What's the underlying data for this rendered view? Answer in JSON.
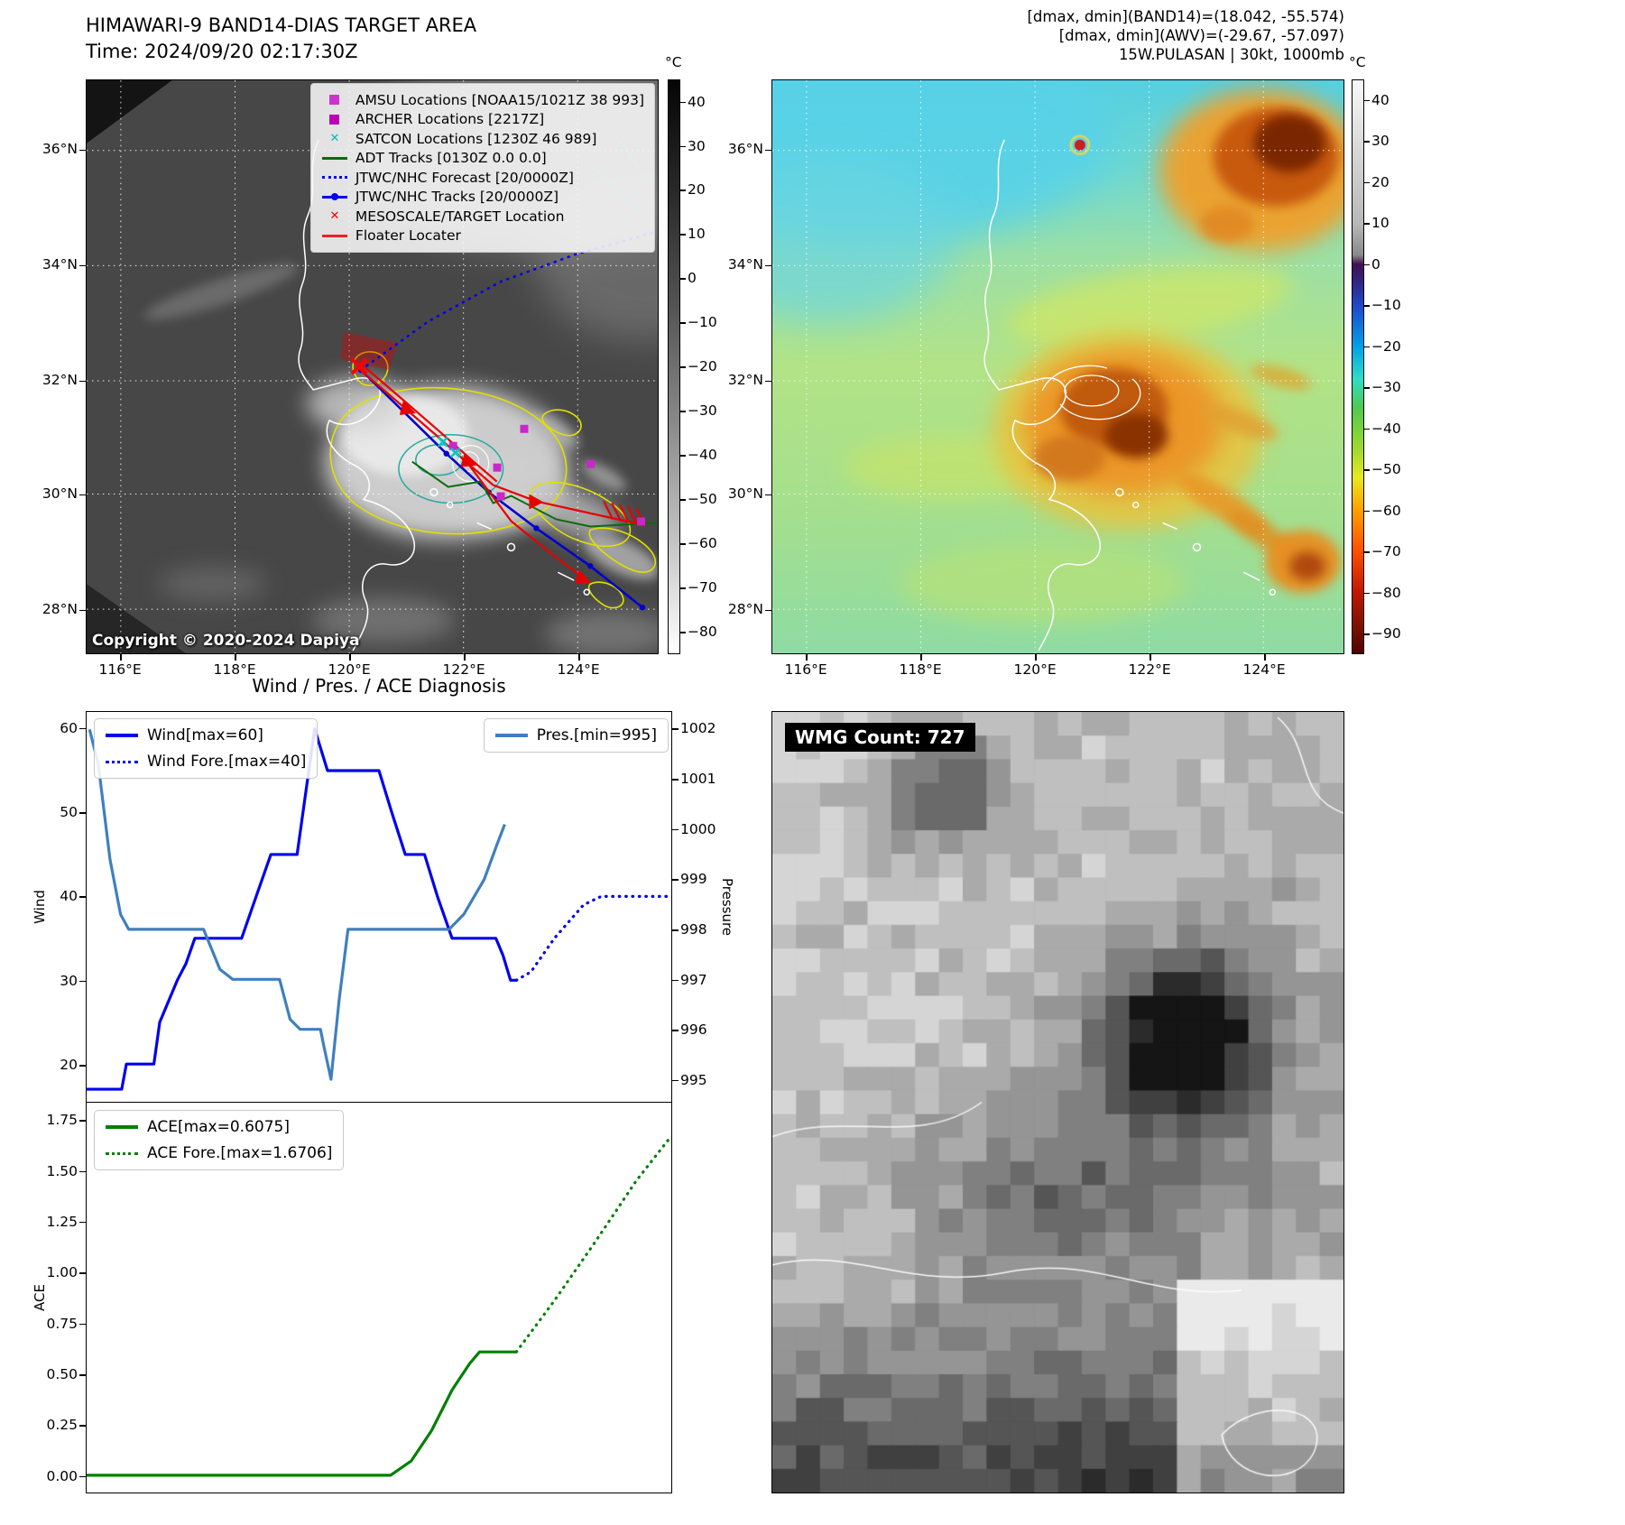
{
  "panel_band14": {
    "title": "HIMAWARI-9 BAND14-DIAS TARGET AREA",
    "time_line": "Time: 2024/09/20 02:17:30Z",
    "copyright": "Copyright © 2020-2024 Dapiya",
    "colorbar": {
      "unit": "°C",
      "ticks": [
        "40",
        "30",
        "20",
        "10",
        "0",
        "−10",
        "−20",
        "−30",
        "−40",
        "−50",
        "−60",
        "−70",
        "−80"
      ]
    },
    "legend": [
      {
        "marker": "square",
        "color": "#cc33cc",
        "label": "AMSU Locations [NOAA15/1021Z 38 993]"
      },
      {
        "marker": "square",
        "color": "#bb00bb",
        "label": "ARCHER Locations [2217Z]"
      },
      {
        "marker": "x",
        "color": "#00b8b8",
        "label": "SATCON Locations [1230Z 46 989]"
      },
      {
        "marker": "line",
        "color": "#0b6b0b",
        "label": "ADT Tracks [0130Z 0.0 0.0]"
      },
      {
        "marker": "dotted",
        "color": "#0000ee",
        "label": "JTWC/NHC Forecast [20/0000Z]"
      },
      {
        "marker": "line-dot",
        "color": "#0000ee",
        "label": "JTWC/NHC Tracks [20/0000Z]"
      },
      {
        "marker": "x",
        "color": "#ee0000",
        "label": "MESOSCALE/TARGET Location"
      },
      {
        "marker": "line",
        "color": "#ee2222",
        "label": "Floater Locater"
      }
    ]
  },
  "panel_awv": {
    "header_lines": [
      "[dmax, dmin](BAND14)=(18.042, -55.574)",
      "[dmax, dmin](AWV)=(-29.67, -57.097)",
      "15W.PULASAN | 30kt, 1000mb"
    ],
    "colorbar": {
      "unit": "°C",
      "ticks": [
        "40",
        "30",
        "20",
        "10",
        "0",
        "−10",
        "−20",
        "−30",
        "−40",
        "−50",
        "−60",
        "−70",
        "−80",
        "−90"
      ]
    }
  },
  "map_axes": {
    "lat_labels": [
      "36°N",
      "34°N",
      "32°N",
      "30°N",
      "28°N"
    ],
    "lon_labels": [
      "116°E",
      "118°E",
      "120°E",
      "122°E",
      "124°E"
    ]
  },
  "panel_wmg": {
    "label": "WMG Count: 727"
  },
  "chart_data": [
    {
      "type": "line",
      "title": "Wind / Pres. / ACE Diagnosis",
      "x_range": [
        0,
        1
      ],
      "grid": false,
      "y_left": {
        "label": "Wind",
        "domain": [
          15.5,
          62
        ],
        "ticks": [
          20,
          30,
          40,
          50,
          60
        ],
        "tick_labels": [
          "20",
          "30",
          "40",
          "50",
          "60"
        ]
      },
      "y_right": {
        "label": "Pressure",
        "domain": [
          994.55,
          1002.35
        ],
        "ticks": [
          995,
          996,
          997,
          998,
          999,
          1000,
          1001,
          1002
        ],
        "tick_labels": [
          "995",
          "996",
          "997",
          "998",
          "999",
          "1000",
          "1001",
          "1002"
        ]
      },
      "series": [
        {
          "name": "Wind[max=60]",
          "axis": "left",
          "style": "solid",
          "color": "#0000ee",
          "points": [
            [
              0,
              17
            ],
            [
              0.06,
              17
            ],
            [
              0.068,
              20
            ],
            [
              0.115,
              20
            ],
            [
              0.125,
              25
            ],
            [
              0.155,
              30
            ],
            [
              0.17,
              32
            ],
            [
              0.185,
              35
            ],
            [
              0.265,
              35
            ],
            [
              0.29,
              40
            ],
            [
              0.315,
              45
            ],
            [
              0.36,
              45
            ],
            [
              0.39,
              60
            ],
            [
              0.412,
              55
            ],
            [
              0.5,
              55
            ],
            [
              0.522,
              50
            ],
            [
              0.545,
              45
            ],
            [
              0.578,
              45
            ],
            [
              0.6,
              40
            ],
            [
              0.625,
              35
            ],
            [
              0.7,
              35
            ],
            [
              0.712,
              33
            ],
            [
              0.725,
              30
            ],
            [
              0.735,
              30
            ]
          ]
        },
        {
          "name": "Wind Fore.[max=40]",
          "axis": "left",
          "style": "dotted",
          "color": "#0000ee",
          "points": [
            [
              0.735,
              30
            ],
            [
              0.76,
              31
            ],
            [
              0.8,
              35
            ],
            [
              0.85,
              39
            ],
            [
              0.88,
              40
            ],
            [
              1,
              40
            ]
          ]
        },
        {
          "name": "Pres.[min=995]",
          "axis": "right",
          "style": "solid",
          "color": "#3f7fbf",
          "points": [
            [
              0.005,
              1002
            ],
            [
              0.02,
              1001.3
            ],
            [
              0.04,
              999.4
            ],
            [
              0.058,
              998.3
            ],
            [
              0.072,
              998
            ],
            [
              0.2,
              998
            ],
            [
              0.228,
              997.2
            ],
            [
              0.25,
              997
            ],
            [
              0.33,
              997
            ],
            [
              0.348,
              996.2
            ],
            [
              0.365,
              996
            ],
            [
              0.4,
              996
            ],
            [
              0.405,
              995.7
            ],
            [
              0.418,
              995
            ],
            [
              0.432,
              996.6
            ],
            [
              0.447,
              998
            ],
            [
              0.62,
              998
            ],
            [
              0.645,
              998.3
            ],
            [
              0.68,
              999
            ],
            [
              0.702,
              999.7
            ],
            [
              0.715,
              1000.1
            ]
          ]
        }
      ]
    },
    {
      "type": "line",
      "grid": false,
      "y_left": {
        "label": "ACE",
        "domain": [
          -0.085,
          1.835
        ],
        "ticks": [
          0,
          0.25,
          0.5,
          0.75,
          1,
          1.25,
          1.5,
          1.75
        ],
        "tick_labels": [
          "0.00",
          "0.25",
          "0.50",
          "0.75",
          "1.00",
          "1.25",
          "1.50",
          "1.75"
        ]
      },
      "series": [
        {
          "name": "ACE[max=0.6075]",
          "axis": "left",
          "style": "solid",
          "color": "#008000",
          "points": [
            [
              0,
              0
            ],
            [
              0.52,
              0
            ],
            [
              0.555,
              0.07
            ],
            [
              0.59,
              0.22
            ],
            [
              0.625,
              0.42
            ],
            [
              0.655,
              0.55
            ],
            [
              0.672,
              0.6075
            ],
            [
              0.735,
              0.6075
            ]
          ]
        },
        {
          "name": "ACE Fore.[max=1.6706]",
          "axis": "left",
          "style": "dotted",
          "color": "#008000",
          "points": [
            [
              0.735,
              0.6075
            ],
            [
              0.8,
              0.86
            ],
            [
              0.87,
              1.15
            ],
            [
              0.94,
              1.45
            ],
            [
              1,
              1.6706
            ]
          ]
        }
      ]
    }
  ]
}
